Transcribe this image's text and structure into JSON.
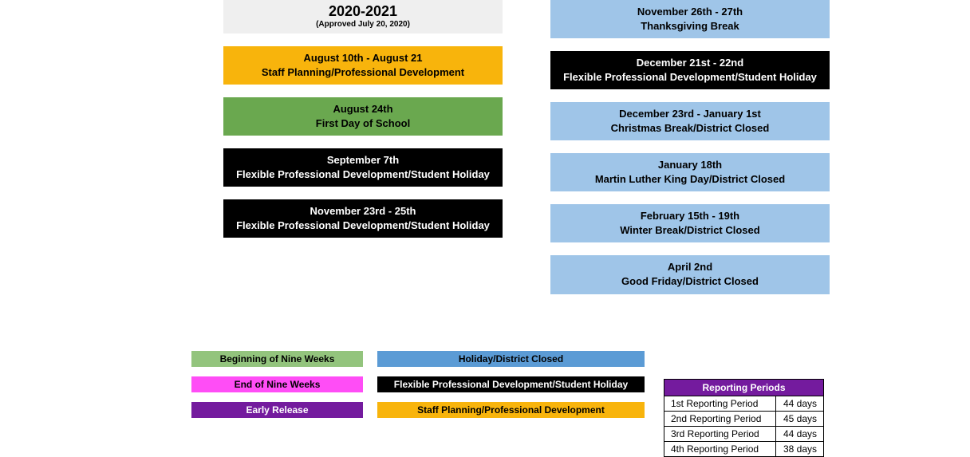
{
  "colors": {
    "header_bg": "#efefef",
    "header_text": "#000000",
    "orange_bg": "#f8b40c",
    "orange_text": "#000000",
    "green_bg": "#6aa84f",
    "green_text": "#000000",
    "black_bg": "#000000",
    "black_text": "#ffffff",
    "blue_bg": "#9fc5e8",
    "blue_text": "#000000",
    "lightgreen_bg": "#93c47d",
    "lightgreen_text": "#000000",
    "magenta_bg": "#ff4df6",
    "magenta_text": "#000000",
    "purple_bg": "#741b9e",
    "purple_text": "#ffffff",
    "legend_blue_bg": "#5b9bd5",
    "report_header_bg": "#741b9e",
    "report_header_text": "#ffffff"
  },
  "header": {
    "year": "2020-2021",
    "sub": "(Approved July 20, 2020)"
  },
  "left_events": [
    {
      "date": "August 10th - August 21",
      "desc": "Staff Planning/Professional Development",
      "style": "orange"
    },
    {
      "date": "August 24th",
      "desc": "First Day of School",
      "style": "green"
    },
    {
      "date": "September 7th",
      "desc": "Flexible Professional Development/Student Holiday",
      "style": "black"
    },
    {
      "date": "November 23rd - 25th",
      "desc": "Flexible Professional Development/Student Holiday",
      "style": "black"
    }
  ],
  "right_events": [
    {
      "date": "November 26th - 27th",
      "desc": "Thanksgiving Break",
      "style": "blue"
    },
    {
      "date": "December 21st - 22nd",
      "desc": "Flexible Professional Development/Student Holiday",
      "style": "black"
    },
    {
      "date": "December 23rd - January 1st",
      "desc": "Christmas Break/District Closed",
      "style": "blue"
    },
    {
      "date": "January 18th",
      "desc": "Martin Luther King Day/District Closed",
      "style": "blue"
    },
    {
      "date": "February 15th - 19th",
      "desc": "Winter Break/District Closed",
      "style": "blue"
    },
    {
      "date": "April 2nd",
      "desc": "Good Friday/District Closed",
      "style": "blue"
    }
  ],
  "legend": [
    {
      "left": "Beginning of Nine Weeks",
      "left_style": "lightgreen",
      "right": "Holiday/District Closed",
      "right_style": "legend_blue"
    },
    {
      "left": "End of Nine Weeks",
      "left_style": "magenta",
      "right": "Flexible Professional Development/Student Holiday",
      "right_style": "black"
    },
    {
      "left": "Early Release",
      "left_style": "purple",
      "right": "Staff Planning/Professional Development",
      "right_style": "orange"
    }
  ],
  "report": {
    "title": "Reporting Periods",
    "rows": [
      {
        "label": "1st Reporting Period",
        "value": "44 days"
      },
      {
        "label": "2nd Reporting Period",
        "value": "45 days"
      },
      {
        "label": "3rd Reporting Period",
        "value": "44 days"
      },
      {
        "label": "4th Reporting Period",
        "value": "38 days"
      }
    ]
  }
}
